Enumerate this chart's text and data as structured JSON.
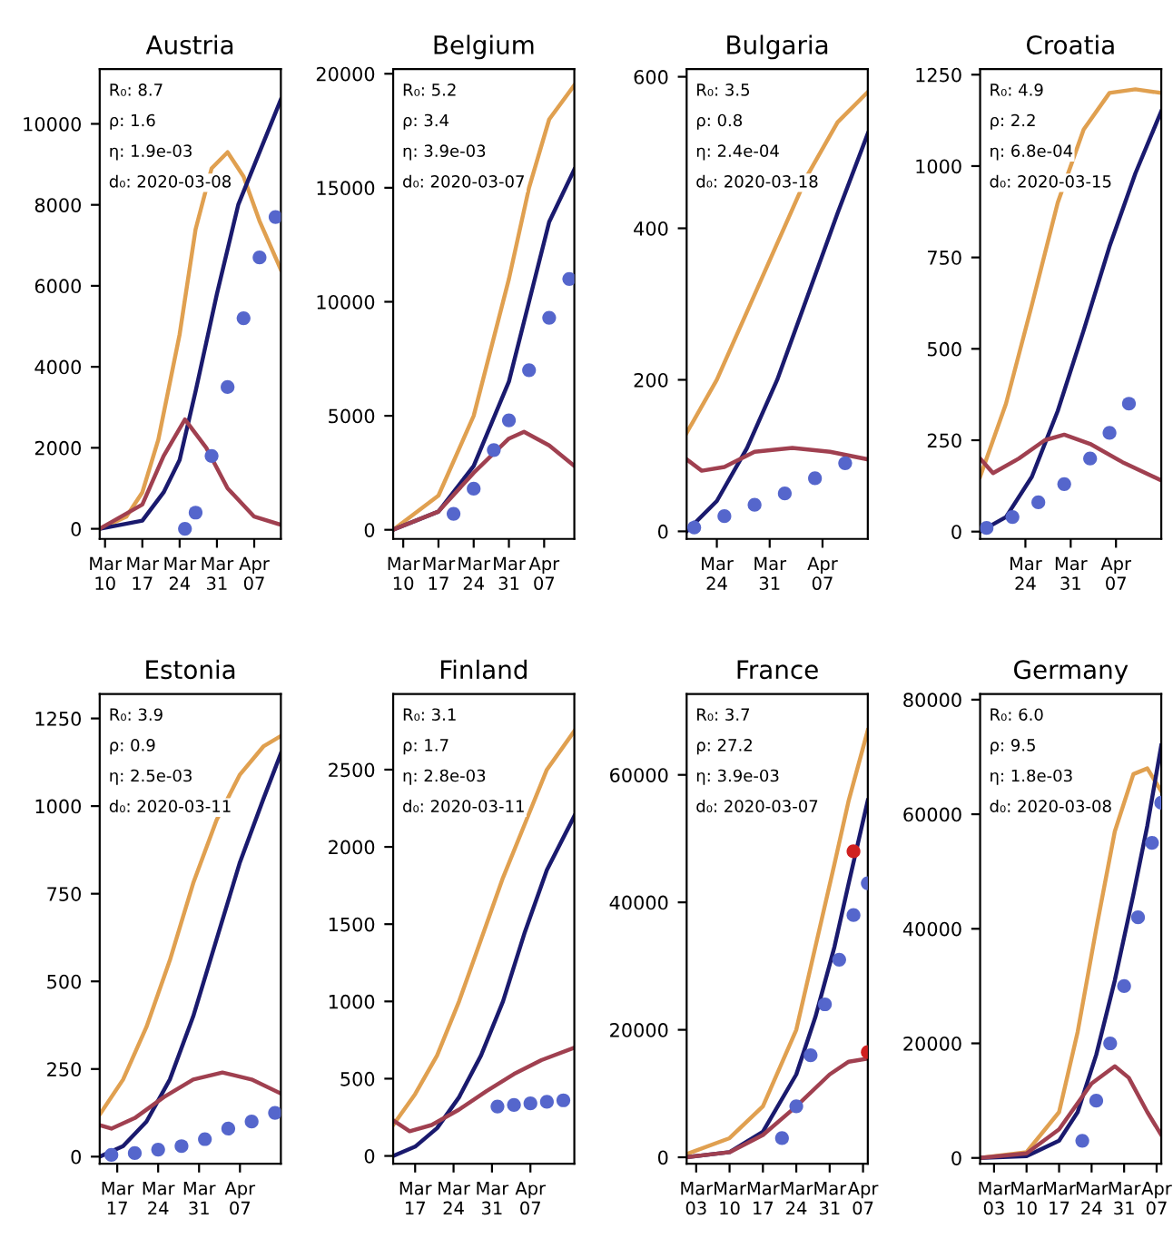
{
  "chart_data": [
    {
      "type": "line",
      "title": "Austria",
      "annotations": [
        "R₀: 8.7",
        "ρ: 1.6",
        "η: 1.9e-03",
        "d₀: 2020-03-08"
      ],
      "xlim": [
        "2020-03-09",
        "2020-04-12"
      ],
      "ylim": [
        -250,
        11350
      ],
      "yticks": [
        0,
        2000,
        4000,
        6000,
        8000,
        10000
      ],
      "xticks": [
        {
          "value": "2020-03-10",
          "label": "Mar\n10"
        },
        {
          "value": "2020-03-17",
          "label": "Mar\n17"
        },
        {
          "value": "2020-03-24",
          "label": "Mar\n24"
        },
        {
          "value": "2020-03-31",
          "label": "Mar\n31"
        },
        {
          "value": "2020-04-07",
          "label": "Apr\n07"
        }
      ],
      "series": [
        {
          "type": "line",
          "color": "#e0a050",
          "x": [
            "2020-03-09",
            "2020-03-14",
            "2020-03-17",
            "2020-03-20",
            "2020-03-24",
            "2020-03-27",
            "2020-03-30",
            "2020-04-02",
            "2020-04-05",
            "2020-04-08",
            "2020-04-12"
          ],
          "values": [
            0,
            300,
            900,
            2200,
            4800,
            7400,
            8900,
            9300,
            8700,
            7600,
            6400
          ]
        },
        {
          "type": "line",
          "color": "#1a1a6e",
          "x": [
            "2020-03-09",
            "2020-03-17",
            "2020-03-21",
            "2020-03-24",
            "2020-03-27",
            "2020-03-31",
            "2020-04-04",
            "2020-04-12"
          ],
          "values": [
            0,
            200,
            900,
            1700,
            3400,
            5800,
            8000,
            10600
          ]
        },
        {
          "type": "line",
          "color": "#a04050",
          "x": [
            "2020-03-09",
            "2020-03-17",
            "2020-03-21",
            "2020-03-25",
            "2020-03-29",
            "2020-04-02",
            "2020-04-07",
            "2020-04-12"
          ],
          "values": [
            0,
            600,
            1800,
            2700,
            2000,
            1000,
            300,
            100
          ]
        },
        {
          "type": "scatter",
          "color": "#5566cc",
          "x": [
            "2020-03-25",
            "2020-03-27",
            "2020-03-30",
            "2020-04-02",
            "2020-04-05",
            "2020-04-08",
            "2020-04-11"
          ],
          "values": [
            0,
            400,
            1800,
            3500,
            5200,
            6700,
            7700
          ]
        }
      ]
    },
    {
      "type": "line",
      "title": "Belgium",
      "annotations": [
        "R₀: 5.2",
        "ρ: 3.4",
        "η: 3.9e-03",
        "d₀: 2020-03-07"
      ],
      "xlim": [
        "2020-03-08",
        "2020-04-13"
      ],
      "ylim": [
        -400,
        20200
      ],
      "yticks": [
        0,
        5000,
        10000,
        15000,
        20000
      ],
      "xticks": [
        {
          "value": "2020-03-10",
          "label": "Mar\n10"
        },
        {
          "value": "2020-03-17",
          "label": "Mar\n17"
        },
        {
          "value": "2020-03-24",
          "label": "Mar\n24"
        },
        {
          "value": "2020-03-31",
          "label": "Mar\n31"
        },
        {
          "value": "2020-04-07",
          "label": "Apr\n07"
        }
      ],
      "series": [
        {
          "type": "line",
          "color": "#e0a050",
          "x": [
            "2020-03-08",
            "2020-03-17",
            "2020-03-24",
            "2020-03-31",
            "2020-04-04",
            "2020-04-08",
            "2020-04-13"
          ],
          "values": [
            0,
            1500,
            5000,
            11000,
            15000,
            18000,
            19500
          ]
        },
        {
          "type": "line",
          "color": "#1a1a6e",
          "x": [
            "2020-03-08",
            "2020-03-17",
            "2020-03-24",
            "2020-03-31",
            "2020-04-04",
            "2020-04-08",
            "2020-04-13"
          ],
          "values": [
            0,
            800,
            2800,
            6500,
            10000,
            13500,
            15800
          ]
        },
        {
          "type": "line",
          "color": "#a04050",
          "x": [
            "2020-03-08",
            "2020-03-17",
            "2020-03-24",
            "2020-03-31",
            "2020-04-03",
            "2020-04-08",
            "2020-04-13"
          ],
          "values": [
            0,
            800,
            2500,
            4000,
            4300,
            3700,
            2800
          ]
        },
        {
          "type": "scatter",
          "color": "#5566cc",
          "x": [
            "2020-03-20",
            "2020-03-24",
            "2020-03-28",
            "2020-03-31",
            "2020-04-04",
            "2020-04-08",
            "2020-04-12"
          ],
          "values": [
            700,
            1800,
            3500,
            4800,
            7000,
            9300,
            11000
          ]
        }
      ]
    },
    {
      "type": "line",
      "title": "Bulgaria",
      "annotations": [
        "R₀: 3.5",
        "ρ: 0.8",
        "η: 2.4e-04",
        "d₀: 2020-03-18"
      ],
      "xlim": [
        "2020-03-20",
        "2020-04-13"
      ],
      "ylim": [
        -10,
        610
      ],
      "yticks": [
        0,
        200,
        400,
        600
      ],
      "xticks": [
        {
          "value": "2020-03-24",
          "label": "Mar\n24"
        },
        {
          "value": "2020-03-31",
          "label": "Mar\n31"
        },
        {
          "value": "2020-04-07",
          "label": "Apr\n07"
        }
      ],
      "series": [
        {
          "type": "line",
          "color": "#e0a050",
          "x": [
            "2020-03-20",
            "2020-03-24",
            "2020-03-28",
            "2020-04-01",
            "2020-04-05",
            "2020-04-09",
            "2020-04-13"
          ],
          "values": [
            130,
            200,
            290,
            380,
            470,
            540,
            580
          ]
        },
        {
          "type": "line",
          "color": "#1a1a6e",
          "x": [
            "2020-03-20",
            "2020-03-24",
            "2020-03-28",
            "2020-04-01",
            "2020-04-05",
            "2020-04-09",
            "2020-04-13"
          ],
          "values": [
            0,
            40,
            110,
            200,
            310,
            420,
            525
          ]
        },
        {
          "type": "line",
          "color": "#a04050",
          "x": [
            "2020-03-20",
            "2020-03-22",
            "2020-03-25",
            "2020-03-29",
            "2020-04-03",
            "2020-04-08",
            "2020-04-13"
          ],
          "values": [
            95,
            80,
            85,
            105,
            110,
            105,
            95
          ]
        },
        {
          "type": "scatter",
          "color": "#5566cc",
          "x": [
            "2020-03-21",
            "2020-03-25",
            "2020-03-29",
            "2020-04-02",
            "2020-04-06",
            "2020-04-10"
          ],
          "values": [
            5,
            20,
            35,
            50,
            70,
            90
          ]
        }
      ]
    },
    {
      "type": "line",
      "title": "Croatia",
      "annotations": [
        "R₀: 4.9",
        "ρ: 2.2",
        "η: 6.8e-04",
        "d₀: 2020-03-15"
      ],
      "xlim": [
        "2020-03-17",
        "2020-04-14"
      ],
      "ylim": [
        -20,
        1265
      ],
      "yticks": [
        0,
        250,
        500,
        750,
        1000,
        1250
      ],
      "xticks": [
        {
          "value": "2020-03-24",
          "label": "Mar\n24"
        },
        {
          "value": "2020-03-31",
          "label": "Mar\n31"
        },
        {
          "value": "2020-04-07",
          "label": "Apr\n07"
        }
      ],
      "series": [
        {
          "type": "line",
          "color": "#e0a050",
          "x": [
            "2020-03-17",
            "2020-03-21",
            "2020-03-25",
            "2020-03-29",
            "2020-04-02",
            "2020-04-06",
            "2020-04-10",
            "2020-04-14"
          ],
          "values": [
            150,
            350,
            620,
            900,
            1100,
            1200,
            1210,
            1200
          ]
        },
        {
          "type": "line",
          "color": "#1a1a6e",
          "x": [
            "2020-03-17",
            "2020-03-21",
            "2020-03-25",
            "2020-03-29",
            "2020-04-02",
            "2020-04-06",
            "2020-04-10",
            "2020-04-14"
          ],
          "values": [
            0,
            40,
            150,
            330,
            550,
            780,
            980,
            1150
          ]
        },
        {
          "type": "line",
          "color": "#a04050",
          "x": [
            "2020-03-17",
            "2020-03-19",
            "2020-03-23",
            "2020-03-27",
            "2020-03-30",
            "2020-04-03",
            "2020-04-08",
            "2020-04-14"
          ],
          "values": [
            200,
            160,
            200,
            250,
            265,
            240,
            190,
            140
          ]
        },
        {
          "type": "scatter",
          "color": "#5566cc",
          "x": [
            "2020-03-18",
            "2020-03-22",
            "2020-03-26",
            "2020-03-30",
            "2020-04-03",
            "2020-04-06",
            "2020-04-09"
          ],
          "values": [
            10,
            40,
            80,
            130,
            200,
            270,
            350
          ]
        }
      ]
    },
    {
      "type": "line",
      "title": "Estonia",
      "annotations": [
        "R₀: 3.9",
        "ρ: 0.9",
        "η: 2.5e-03",
        "d₀: 2020-03-11"
      ],
      "xlim": [
        "2020-03-14",
        "2020-04-14"
      ],
      "ylim": [
        -20,
        1320
      ],
      "yticks": [
        0,
        250,
        500,
        750,
        1000,
        1250
      ],
      "xticks": [
        {
          "value": "2020-03-17",
          "label": "Mar\n17"
        },
        {
          "value": "2020-03-24",
          "label": "Mar\n24"
        },
        {
          "value": "2020-03-31",
          "label": "Mar\n31"
        },
        {
          "value": "2020-04-07",
          "label": "Apr\n07"
        }
      ],
      "series": [
        {
          "type": "line",
          "color": "#e0a050",
          "x": [
            "2020-03-14",
            "2020-03-18",
            "2020-03-22",
            "2020-03-26",
            "2020-03-30",
            "2020-04-03",
            "2020-04-07",
            "2020-04-11",
            "2020-04-14"
          ],
          "values": [
            120,
            220,
            370,
            560,
            780,
            960,
            1090,
            1170,
            1200
          ]
        },
        {
          "type": "line",
          "color": "#1a1a6e",
          "x": [
            "2020-03-14",
            "2020-03-18",
            "2020-03-22",
            "2020-03-26",
            "2020-03-30",
            "2020-04-03",
            "2020-04-07",
            "2020-04-11",
            "2020-04-14"
          ],
          "values": [
            0,
            30,
            100,
            220,
            400,
            620,
            840,
            1020,
            1150
          ]
        },
        {
          "type": "line",
          "color": "#a04050",
          "x": [
            "2020-03-14",
            "2020-03-16",
            "2020-03-20",
            "2020-03-25",
            "2020-03-30",
            "2020-04-04",
            "2020-04-09",
            "2020-04-14"
          ],
          "values": [
            90,
            80,
            110,
            170,
            220,
            240,
            220,
            180
          ]
        },
        {
          "type": "scatter",
          "color": "#5566cc",
          "x": [
            "2020-03-16",
            "2020-03-20",
            "2020-03-24",
            "2020-03-28",
            "2020-04-01",
            "2020-04-05",
            "2020-04-09",
            "2020-04-13"
          ],
          "values": [
            5,
            10,
            20,
            30,
            50,
            80,
            100,
            125
          ]
        }
      ]
    },
    {
      "type": "line",
      "title": "Finland",
      "annotations": [
        "R₀: 3.1",
        "ρ: 1.7",
        "η: 2.8e-03",
        "d₀: 2020-03-11"
      ],
      "xlim": [
        "2020-03-13",
        "2020-04-15"
      ],
      "ylim": [
        -50,
        2990
      ],
      "yticks": [
        0,
        500,
        1000,
        1500,
        2000,
        2500
      ],
      "xticks": [
        {
          "value": "2020-03-17",
          "label": "Mar\n17"
        },
        {
          "value": "2020-03-24",
          "label": "Mar\n24"
        },
        {
          "value": "2020-03-31",
          "label": "Mar\n31"
        },
        {
          "value": "2020-04-07",
          "label": "Apr\n07"
        }
      ],
      "series": [
        {
          "type": "line",
          "color": "#e0a050",
          "x": [
            "2020-03-13",
            "2020-03-17",
            "2020-03-21",
            "2020-03-25",
            "2020-03-29",
            "2020-04-02",
            "2020-04-06",
            "2020-04-10",
            "2020-04-15"
          ],
          "values": [
            200,
            400,
            650,
            1000,
            1400,
            1800,
            2150,
            2500,
            2750
          ]
        },
        {
          "type": "line",
          "color": "#1a1a6e",
          "x": [
            "2020-03-13",
            "2020-03-17",
            "2020-03-21",
            "2020-03-25",
            "2020-03-29",
            "2020-04-02",
            "2020-04-06",
            "2020-04-10",
            "2020-04-15"
          ],
          "values": [
            0,
            60,
            180,
            380,
            650,
            1000,
            1450,
            1850,
            2200
          ]
        },
        {
          "type": "line",
          "color": "#a04050",
          "x": [
            "2020-03-13",
            "2020-03-16",
            "2020-03-20",
            "2020-03-25",
            "2020-03-30",
            "2020-04-04",
            "2020-04-09",
            "2020-04-15"
          ],
          "values": [
            230,
            160,
            200,
            300,
            420,
            530,
            620,
            700
          ]
        },
        {
          "type": "scatter",
          "color": "#5566cc",
          "x": [
            "2020-04-01",
            "2020-04-04",
            "2020-04-07",
            "2020-04-10",
            "2020-04-13"
          ],
          "values": [
            320,
            330,
            340,
            350,
            360
          ]
        }
      ]
    },
    {
      "type": "line",
      "title": "France",
      "annotations": [
        "R₀: 3.7",
        "ρ: 27.2",
        "η: 3.9e-03",
        "d₀: 2020-03-07"
      ],
      "xlim": [
        "2020-03-01",
        "2020-04-08"
      ],
      "ylim": [
        -1000,
        72700
      ],
      "yticks": [
        0,
        20000,
        40000,
        60000
      ],
      "xticks": [
        {
          "value": "2020-03-03",
          "label": "Mar\n03"
        },
        {
          "value": "2020-03-10",
          "label": "Mar\n10"
        },
        {
          "value": "2020-03-17",
          "label": "Mar\n17"
        },
        {
          "value": "2020-03-24",
          "label": "Mar\n24"
        },
        {
          "value": "2020-03-31",
          "label": "Mar\n31"
        },
        {
          "value": "2020-04-07",
          "label": "Apr\n07"
        }
      ],
      "series": [
        {
          "type": "line",
          "color": "#e0a050",
          "x": [
            "2020-03-01",
            "2020-03-10",
            "2020-03-17",
            "2020-03-24",
            "2020-03-28",
            "2020-04-01",
            "2020-04-04",
            "2020-04-08"
          ],
          "values": [
            500,
            3000,
            8000,
            20000,
            33000,
            46000,
            56000,
            67000
          ]
        },
        {
          "type": "line",
          "color": "#1a1a6e",
          "x": [
            "2020-03-01",
            "2020-03-10",
            "2020-03-17",
            "2020-03-24",
            "2020-03-28",
            "2020-04-01",
            "2020-04-04",
            "2020-04-08"
          ],
          "values": [
            0,
            800,
            4000,
            13000,
            22000,
            33000,
            43000,
            56000
          ]
        },
        {
          "type": "line",
          "color": "#a04050",
          "x": [
            "2020-03-01",
            "2020-03-10",
            "2020-03-17",
            "2020-03-24",
            "2020-03-31",
            "2020-04-04",
            "2020-04-08"
          ],
          "values": [
            0,
            800,
            3500,
            8000,
            13000,
            15000,
            15500
          ]
        },
        {
          "type": "scatter",
          "color": "#5566cc",
          "x": [
            "2020-03-21",
            "2020-03-24",
            "2020-03-27",
            "2020-03-30",
            "2020-04-02",
            "2020-04-05",
            "2020-04-08"
          ],
          "values": [
            3000,
            8000,
            16000,
            24000,
            31000,
            38000,
            43000
          ]
        },
        {
          "type": "scatter",
          "color": "#d02020",
          "x": [
            "2020-04-05",
            "2020-04-08"
          ],
          "values": [
            48000,
            16500
          ]
        }
      ]
    },
    {
      "type": "line",
      "title": "Germany",
      "annotations": [
        "R₀: 6.0",
        "ρ: 9.5",
        "η: 1.8e-03",
        "d₀: 2020-03-08"
      ],
      "xlim": [
        "2020-02-29",
        "2020-04-08"
      ],
      "ylim": [
        -1000,
        81000
      ],
      "yticks": [
        0,
        20000,
        40000,
        60000,
        80000
      ],
      "xticks": [
        {
          "value": "2020-03-03",
          "label": "Mar\n03"
        },
        {
          "value": "2020-03-10",
          "label": "Mar\n10"
        },
        {
          "value": "2020-03-17",
          "label": "Mar\n17"
        },
        {
          "value": "2020-03-24",
          "label": "Mar\n24"
        },
        {
          "value": "2020-03-31",
          "label": "Mar\n31"
        },
        {
          "value": "2020-04-07",
          "label": "Apr\n07"
        }
      ],
      "series": [
        {
          "type": "line",
          "color": "#e0a050",
          "x": [
            "2020-02-29",
            "2020-03-10",
            "2020-03-17",
            "2020-03-21",
            "2020-03-25",
            "2020-03-29",
            "2020-04-02",
            "2020-04-05",
            "2020-04-08"
          ],
          "values": [
            0,
            1000,
            8000,
            22000,
            40000,
            57000,
            67000,
            68000,
            64000
          ]
        },
        {
          "type": "line",
          "color": "#1a1a6e",
          "x": [
            "2020-02-29",
            "2020-03-10",
            "2020-03-17",
            "2020-03-21",
            "2020-03-25",
            "2020-03-29",
            "2020-04-02",
            "2020-04-05",
            "2020-04-08"
          ],
          "values": [
            0,
            300,
            3000,
            8000,
            18000,
            31000,
            46000,
            58000,
            72000
          ]
        },
        {
          "type": "line",
          "color": "#a04050",
          "x": [
            "2020-02-29",
            "2020-03-10",
            "2020-03-17",
            "2020-03-24",
            "2020-03-29",
            "2020-04-01",
            "2020-04-05",
            "2020-04-08"
          ],
          "values": [
            0,
            800,
            5000,
            13000,
            16000,
            14000,
            8000,
            4000
          ]
        },
        {
          "type": "scatter",
          "color": "#5566cc",
          "x": [
            "2020-03-22",
            "2020-03-25",
            "2020-03-28",
            "2020-03-31",
            "2020-04-03",
            "2020-04-06",
            "2020-04-08"
          ],
          "values": [
            3000,
            10000,
            20000,
            30000,
            42000,
            55000,
            62000
          ]
        }
      ]
    }
  ]
}
